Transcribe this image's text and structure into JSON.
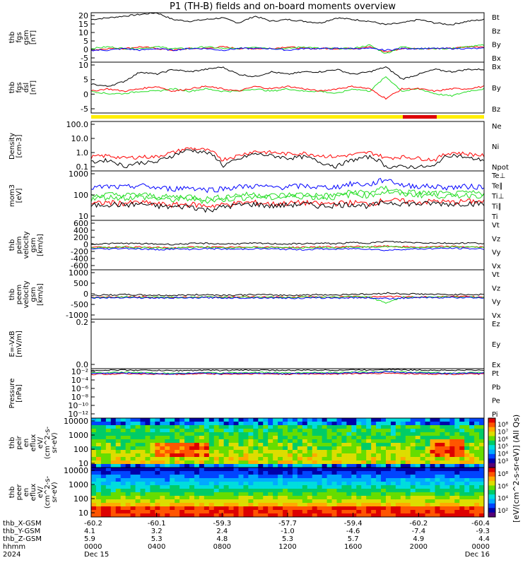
{
  "title": "P1 (TH-B) fields and on-board moments overview",
  "colors": {
    "black": "#000000",
    "red": "#ff0000",
    "green": "#22dd22",
    "blue": "#0000ff",
    "yellow": "#ffee00",
    "darkred": "#dd0000"
  },
  "chart_data": [
    {
      "type": "line",
      "panel": "fgs",
      "ylabel": [
        "thb",
        "fgs",
        "gsm",
        "[nT]"
      ],
      "yticks": [
        "20",
        "15",
        "10",
        "5",
        "0",
        "-5"
      ],
      "ylim": [
        -8,
        21
      ],
      "series": [
        {
          "name": "Bt",
          "color": "#000000",
          "values": [
            17,
            18,
            19,
            20,
            21,
            17,
            16,
            17,
            18,
            15,
            19,
            16,
            17,
            16,
            15,
            18,
            17,
            16,
            14,
            15,
            17,
            15,
            14,
            16,
            17
          ]
        },
        {
          "name": "Bz",
          "color": "#ff0000",
          "values": [
            -1,
            0,
            0,
            1,
            0,
            -1,
            0,
            0,
            1,
            0,
            0,
            0,
            1,
            0,
            0,
            0,
            0,
            1,
            -2,
            0,
            0,
            0,
            0,
            1,
            1
          ]
        },
        {
          "name": "By",
          "color": "#22dd22",
          "values": [
            0,
            1,
            0,
            0,
            1,
            0,
            0,
            1,
            0,
            0,
            1,
            0,
            0,
            1,
            0,
            0,
            0,
            2,
            -3,
            1,
            0,
            0,
            0,
            1,
            2
          ]
        },
        {
          "name": "Bx",
          "color": "#0000ff",
          "values": [
            -1,
            -1,
            0,
            -1,
            0,
            -1,
            0,
            0,
            -1,
            0,
            0,
            0,
            -1,
            0,
            0,
            0,
            0,
            0,
            -1,
            0,
            0,
            0,
            0,
            0,
            0
          ]
        }
      ]
    },
    {
      "type": "line",
      "panel": "fgs-dsl",
      "ylabel": [
        "thb",
        "fgs",
        "dsl",
        "[nT]"
      ],
      "yticks": [
        "10",
        "5",
        "0",
        "-5"
      ],
      "ylim": [
        -9,
        12
      ],
      "series": [
        {
          "name": "Bx",
          "color": "#000000",
          "values": [
            3,
            2,
            4,
            8,
            7,
            9,
            8,
            9,
            10,
            7,
            6,
            8,
            7,
            8,
            8,
            9,
            7,
            8,
            10,
            5,
            7,
            9,
            8,
            9,
            9
          ]
        },
        {
          "name": "By",
          "color": "#22dd22",
          "values": [
            0,
            -1,
            -1,
            0,
            0,
            1,
            0,
            1,
            0,
            0,
            1,
            0,
            1,
            0,
            0,
            -1,
            1,
            0,
            6,
            0,
            1,
            -1,
            -2,
            0,
            1
          ]
        },
        {
          "name": "Bz",
          "color": "#ff0000",
          "values": [
            0,
            1,
            0,
            1,
            2,
            0,
            1,
            2,
            1,
            0,
            2,
            1,
            2,
            1,
            0,
            1,
            2,
            1,
            -3,
            1,
            1,
            0,
            1,
            1,
            2
          ]
        }
      ]
    },
    {
      "type": "line",
      "panel": "density",
      "log": true,
      "ylabel": [
        "Density",
        "[cm-3]"
      ],
      "yticks": [
        "100.0",
        "10.0",
        "1.0",
        "0.1"
      ],
      "ylim": [
        0.05,
        150
      ],
      "series": [
        {
          "name": "Ne",
          "color": "#ff0000",
          "values": [
            0.5,
            0.6,
            0.4,
            0.5,
            0.5,
            1.0,
            2.0,
            1.5,
            0.3,
            0.6,
            1.2,
            1.0,
            0.8,
            0.9,
            0.6,
            0.5,
            0.7,
            1.0,
            0.4,
            0.5,
            0.4,
            0.3,
            1.0,
            0.8,
            0.6
          ]
        },
        {
          "name": "Ni",
          "color": "#000000",
          "values": [
            0.2,
            0.3,
            0.1,
            0.2,
            0.2,
            0.6,
            1.5,
            1.0,
            0.1,
            0.3,
            0.8,
            0.6,
            0.4,
            0.5,
            0.2,
            0.1,
            0.3,
            0.5,
            0.1,
            0.1,
            0.1,
            0.1,
            0.7,
            0.4,
            0.3
          ]
        },
        {
          "name": "Npot",
          "color": "#0000ff",
          "values": []
        }
      ]
    },
    {
      "type": "line",
      "panel": "moments3",
      "log": true,
      "ylabel": [
        "mom3",
        "[eV]"
      ],
      "yticks": [
        "1000",
        "100",
        "10"
      ],
      "ylim": [
        8,
        2000
      ],
      "series": [
        {
          "name": "Te⊥",
          "color": "#ff0000",
          "values": [
            50,
            60,
            55,
            60,
            50,
            45,
            50,
            40,
            45,
            55,
            60,
            50,
            55,
            60,
            50,
            55,
            60,
            50,
            80,
            70,
            60,
            70,
            60,
            70,
            65
          ]
        },
        {
          "name": "Te∥",
          "color": "#000000",
          "values": [
            40,
            50,
            45,
            50,
            40,
            35,
            40,
            25,
            35,
            45,
            50,
            40,
            45,
            50,
            40,
            45,
            50,
            40,
            60,
            55,
            50,
            55,
            50,
            55,
            50
          ]
        },
        {
          "name": "Ti⊥",
          "color": "#22dd22",
          "values": [
            120,
            150,
            130,
            150,
            120,
            110,
            120,
            90,
            110,
            140,
            150,
            130,
            140,
            150,
            130,
            140,
            200,
            180,
            300,
            200,
            180,
            170,
            150,
            180,
            160
          ]
        },
        {
          "name": "Ti∥",
          "color": "#22dd22",
          "values": [
            90,
            110,
            100,
            110,
            90,
            80,
            90,
            70,
            80,
            100,
            110,
            100,
            110,
            120,
            100,
            110,
            150,
            130,
            200,
            150,
            140,
            130,
            120,
            140,
            130
          ]
        },
        {
          "name": "Ti",
          "color": "#0000ff",
          "values": [
            300,
            350,
            320,
            400,
            300,
            280,
            320,
            250,
            280,
            340,
            380,
            320,
            350,
            380,
            320,
            340,
            500,
            420,
            800,
            400,
            380,
            350,
            320,
            360,
            340
          ]
        }
      ]
    },
    {
      "type": "line",
      "panel": "peim-velocity",
      "ylabel": [
        "thb",
        "peim",
        "velocity",
        "gsm",
        "[km/s]"
      ],
      "yticks": [
        "600",
        "400",
        "200",
        "0",
        "-200",
        "-400",
        "-600"
      ],
      "ylim": [
        -650,
        750
      ],
      "series": [
        {
          "name": "Vt",
          "color": "#000000",
          "values": [
            80,
            90,
            100,
            90,
            80,
            70,
            90,
            100,
            80,
            90,
            100,
            90,
            80,
            90,
            100,
            90,
            120,
            110,
            150,
            130,
            120,
            110,
            100,
            110,
            100
          ]
        },
        {
          "name": "Vz",
          "color": "#ff0000",
          "values": [
            -20,
            -10,
            0,
            -10,
            -20,
            -30,
            -10,
            0,
            -20,
            -10,
            0,
            -10,
            -20,
            -10,
            0,
            -10,
            10,
            0,
            20,
            0,
            -10,
            0,
            10,
            0,
            -10
          ]
        },
        {
          "name": "Vy",
          "color": "#22dd22",
          "values": [
            -30,
            -20,
            -10,
            -20,
            -30,
            -40,
            -20,
            -10,
            -30,
            -20,
            -10,
            -20,
            -30,
            -20,
            -10,
            -20,
            0,
            -10,
            10,
            -10,
            -20,
            -10,
            0,
            -10,
            -20
          ]
        },
        {
          "name": "Vx",
          "color": "#0000ff",
          "values": [
            -50,
            -60,
            -40,
            -60,
            -80,
            -60,
            -70,
            -50,
            -60,
            -70,
            -50,
            -60,
            -70,
            -80,
            -60,
            -70,
            -50,
            -60,
            -100,
            -70,
            -60,
            -50,
            -40,
            -50,
            -60
          ]
        }
      ]
    },
    {
      "type": "line",
      "panel": "peem-velocity",
      "ylabel": [
        "thb",
        "peem",
        "velocity",
        "gsm",
        "[km/s]"
      ],
      "yticks": [
        "1000",
        "500",
        "0",
        "-500",
        "-1000"
      ],
      "ylim": [
        -1100,
        1350
      ],
      "series": [
        {
          "name": "Vt",
          "color": "#000000",
          "values": [
            80,
            100,
            120,
            100,
            90,
            80,
            100,
            120,
            90,
            100,
            120,
            100,
            90,
            100,
            120,
            100,
            150,
            130,
            200,
            160,
            150,
            130,
            120,
            130,
            120
          ]
        },
        {
          "name": "Vz",
          "color": "#ff0000",
          "values": [
            -10,
            0,
            10,
            0,
            -10,
            -20,
            0,
            10,
            -10,
            0,
            10,
            0,
            -10,
            0,
            10,
            0,
            20,
            10,
            30,
            10,
            0,
            10,
            20,
            10,
            0
          ]
        },
        {
          "name": "Vy",
          "color": "#22dd22",
          "values": [
            -20,
            -10,
            0,
            -10,
            -20,
            -30,
            -10,
            0,
            -20,
            -10,
            0,
            -10,
            -20,
            -10,
            0,
            -10,
            10,
            0,
            -300,
            0,
            -10,
            0,
            10,
            0,
            -10
          ]
        },
        {
          "name": "Vx",
          "color": "#0000ff",
          "values": [
            -30,
            -40,
            -20,
            -40,
            -50,
            -40,
            -50,
            -30,
            -40,
            -50,
            -30,
            -40,
            -50,
            -60,
            -40,
            -50,
            -30,
            -40,
            -80,
            -50,
            -40,
            -30,
            -20,
            -30,
            -40
          ]
        }
      ]
    },
    {
      "type": "line",
      "panel": "efield",
      "ylabel": [
        "E=-VxB",
        "[mV/m]"
      ],
      "yticks": [
        "0.2",
        "0.0"
      ],
      "ylim": [
        0,
        1
      ],
      "series": [
        {
          "name": "Ez",
          "color": "#ff0000",
          "values": []
        },
        {
          "name": "Ey",
          "color": "#22dd22",
          "values": []
        },
        {
          "name": "Ex",
          "color": "#0000ff",
          "values": []
        }
      ]
    },
    {
      "type": "line",
      "panel": "pressure",
      "log": true,
      "ylabel": [
        "Pressure",
        "[nPa]"
      ],
      "yticks": [
        "10^-2",
        "10^-4",
        "10^-6",
        "10^-8",
        "10^-10",
        "10^-12"
      ],
      "ylim": [
        1e-13,
        0.02
      ],
      "series": [
        {
          "name": "Pt",
          "color": "#000000",
          "values": [
            0.008,
            0.009,
            0.01,
            0.009,
            0.008,
            0.007,
            0.008,
            0.009,
            0.008,
            0.009,
            0.01,
            0.009,
            0.008,
            0.009,
            0.01,
            0.009,
            0.011,
            0.01,
            0.015,
            0.011,
            0.01,
            0.009,
            0.008,
            0.009,
            0.009
          ]
        },
        {
          "name": "Pb",
          "color": "#dd0000",
          "values": [
            0.001,
            0.0012,
            0.0015,
            0.0013,
            0.0011,
            0.001,
            0.0012,
            0.0015,
            0.0011,
            0.0012,
            0.0014,
            0.0012,
            0.0011,
            0.0012,
            0.0014,
            0.0012,
            0.0016,
            0.0014,
            0.002,
            0.0015,
            0.0014,
            0.0012,
            0.0011,
            0.0012,
            0.0013
          ]
        },
        {
          "name": "Pe",
          "color": "#22dd22",
          "values": [
            0.002,
            0.0025,
            0.003,
            0.0025,
            0.002,
            0.0018,
            0.002,
            0.0025,
            0.002,
            0.0025,
            0.003,
            0.0025,
            0.002,
            0.0025,
            0.003,
            0.0025,
            0.0035,
            0.003,
            0.005,
            0.0035,
            0.003,
            0.0025,
            0.002,
            0.0025,
            0.0028
          ]
        },
        {
          "name": "Pi",
          "color": "#0000ff",
          "values": [
            0.0015,
            0.0018,
            0.002,
            0.0018,
            0.0015,
            0.0013,
            0.0015,
            0.0018,
            0.0015,
            0.0018,
            0.002,
            0.0018,
            0.0015,
            0.0018,
            0.002,
            0.0018,
            0.0025,
            0.002,
            0.004,
            0.0025,
            0.002,
            0.0018,
            0.0015,
            0.0018,
            0.002
          ]
        }
      ]
    },
    {
      "type": "heatmap",
      "panel": "peir-en-eflux",
      "ylabel": [
        "thb",
        "peir",
        "en",
        "eflux",
        "eV/",
        "(cm^2-s-",
        "sr-eV)"
      ],
      "yticks": [
        "10000",
        "1000",
        "100",
        "10"
      ],
      "colorbar": {
        "ticks": [
          "10^8",
          "10^7",
          "10^6",
          "10^5",
          "10^4",
          "10^3"
        ],
        "label": "[eV/(cm^2-s-sr-eV)] (All Qs)"
      }
    },
    {
      "type": "heatmap",
      "panel": "peer-en-eflux",
      "ylabel": [
        "thb",
        "peer",
        "en",
        "eflux",
        "eV/",
        "(cm^2-s-",
        "sr-eV)"
      ],
      "yticks": [
        "10000",
        "1000",
        "100",
        "10"
      ],
      "colorbar": {
        "ticks": [
          "10^8",
          "10^6",
          "10^4",
          "10^2"
        ],
        "label": "[eV/(cm^2-s-sr-eV)] (All Qs)"
      }
    }
  ],
  "x_axis": {
    "row_labels": [
      "thb_X-GSM",
      "thb_Y-GSM",
      "thb_Z-GSM",
      "hhmm",
      "2024"
    ],
    "columns": [
      {
        "x": "-60.2",
        "y": "4.1",
        "z": "5.9",
        "hhmm": "0000",
        "date": "Dec 15"
      },
      {
        "x": "-60.1",
        "y": "3.2",
        "z": "5.3",
        "hhmm": "0400",
        "date": ""
      },
      {
        "x": "-59.3",
        "y": "2.4",
        "z": "4.8",
        "hhmm": "0800",
        "date": ""
      },
      {
        "x": "-57.7",
        "y": "-1.0",
        "z": "5.3",
        "hhmm": "1200",
        "date": ""
      },
      {
        "x": "-59.4",
        "y": "-4.6",
        "z": "5.7",
        "hhmm": "1600",
        "date": ""
      },
      {
        "x": "-60.2",
        "y": "-7.4",
        "z": "4.9",
        "hhmm": "2000",
        "date": ""
      },
      {
        "x": "-60.4",
        "y": "-9.3",
        "z": "4.4",
        "hhmm": "0000",
        "date": "Dec 16"
      }
    ]
  }
}
